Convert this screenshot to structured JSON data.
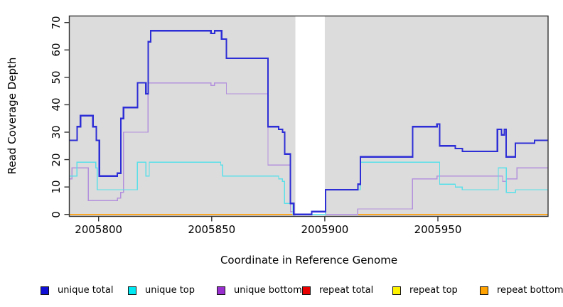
{
  "chart_data": {
    "type": "line",
    "subtype": "step-coverage",
    "title": "",
    "xlabel": "Coordinate in Reference Genome",
    "ylabel": "Read Coverage Depth",
    "x_ticks": [
      2005800,
      2005850,
      2005900,
      2005950
    ],
    "y_ticks": [
      0,
      10,
      20,
      30,
      40,
      50,
      60,
      70
    ],
    "xlim": [
      2005787.2,
      2005998.7
    ],
    "ylim": [
      0,
      70
    ],
    "grid": false,
    "legend_position": "bottom",
    "plot_bg": "#dcdcdc",
    "border_color": "#333333",
    "gap_region": {
      "x_start": 2005887,
      "x_end": 2005900,
      "color": "#ffffff"
    },
    "series": [
      {
        "id": "unique-total",
        "label": "unique total",
        "color": "#2e2ed6",
        "legend_color": "#0f0fd6",
        "width": 2.2,
        "steps": [
          [
            2005787.2,
            27
          ],
          [
            2005790.5,
            32
          ],
          [
            2005792,
            36
          ],
          [
            2005797.5,
            32
          ],
          [
            2005799,
            27
          ],
          [
            2005800.3,
            14
          ],
          [
            2005808.3,
            15
          ],
          [
            2005809.8,
            35
          ],
          [
            2005811,
            39
          ],
          [
            2005817.2,
            48
          ],
          [
            2005820.9,
            44
          ],
          [
            2005821.9,
            63
          ],
          [
            2005823,
            67
          ],
          [
            2005849.7,
            66
          ],
          [
            2005851.3,
            67
          ],
          [
            2005854.4,
            64
          ],
          [
            2005856.5,
            57
          ],
          [
            2005874.9,
            32
          ],
          [
            2005879.6,
            31
          ],
          [
            2005881.3,
            30
          ],
          [
            2005882.3,
            22
          ],
          [
            2005884.8,
            4
          ],
          [
            2005886.3,
            0
          ],
          [
            2005894.2,
            1
          ],
          [
            2005900.3,
            9
          ],
          [
            2005914.6,
            11
          ],
          [
            2005915.7,
            21
          ],
          [
            2005938.8,
            32
          ],
          [
            2005949.6,
            33
          ],
          [
            2005950.8,
            25
          ],
          [
            2005957.7,
            24
          ],
          [
            2005960.8,
            23
          ],
          [
            2005976.3,
            31
          ],
          [
            2005978.1,
            29
          ],
          [
            2005979.4,
            31
          ],
          [
            2005980.2,
            21
          ],
          [
            2005984.3,
            26
          ],
          [
            2005992.7,
            27
          ]
        ]
      },
      {
        "id": "unique-top",
        "label": "unique top",
        "color": "#5adfe9",
        "legend_color": "#00e9f2",
        "width": 1.4,
        "steps": [
          [
            2005787.2,
            14
          ],
          [
            2005790.4,
            19
          ],
          [
            2005798.8,
            17
          ],
          [
            2005799.4,
            9
          ],
          [
            2005817.2,
            19
          ],
          [
            2005820.9,
            14
          ],
          [
            2005822.4,
            19
          ],
          [
            2005854,
            18
          ],
          [
            2005854.9,
            14
          ],
          [
            2005879.6,
            13
          ],
          [
            2005881.2,
            12
          ],
          [
            2005882.2,
            4
          ],
          [
            2005885.9,
            0
          ],
          [
            2005900.3,
            9
          ],
          [
            2005915.7,
            19
          ],
          [
            2005950.8,
            11
          ],
          [
            2005957.7,
            10
          ],
          [
            2005960.8,
            9
          ],
          [
            2005976.7,
            17
          ],
          [
            2005980.2,
            8
          ],
          [
            2005984.3,
            9
          ]
        ]
      },
      {
        "id": "unique-bottom",
        "label": "unique bottom",
        "color": "#b391dc",
        "legend_color": "#9a2fd0",
        "width": 1.4,
        "steps": [
          [
            2005787.2,
            13
          ],
          [
            2005788.2,
            17
          ],
          [
            2005795.5,
            5
          ],
          [
            2005808.3,
            6
          ],
          [
            2005809.8,
            8
          ],
          [
            2005811,
            30
          ],
          [
            2005821.9,
            48
          ],
          [
            2005849.7,
            47
          ],
          [
            2005851.3,
            48
          ],
          [
            2005856.5,
            44
          ],
          [
            2005874.9,
            18
          ],
          [
            2005884.8,
            1
          ],
          [
            2005886.3,
            0
          ],
          [
            2005914.6,
            2
          ],
          [
            2005938.8,
            13
          ],
          [
            2005949.6,
            14
          ],
          [
            2005978.6,
            12
          ],
          [
            2005980.2,
            13
          ],
          [
            2005984.9,
            17
          ]
        ]
      },
      {
        "id": "repeat-total",
        "label": "repeat total",
        "color": "#e00000",
        "legend_color": "#e80000",
        "width": 1.4,
        "steps": [
          [
            2005787.2,
            0
          ]
        ]
      },
      {
        "id": "repeat-top",
        "label": "repeat top",
        "color": "#ffee00",
        "legend_color": "#fff200",
        "width": 1.4,
        "steps": [
          [
            2005787.2,
            0
          ]
        ]
      },
      {
        "id": "repeat-bottom",
        "label": "repeat bottom",
        "color": "#ff9d00",
        "legend_color": "#ffa200",
        "width": 1.6,
        "steps": [
          [
            2005787.2,
            0
          ]
        ]
      }
    ]
  }
}
